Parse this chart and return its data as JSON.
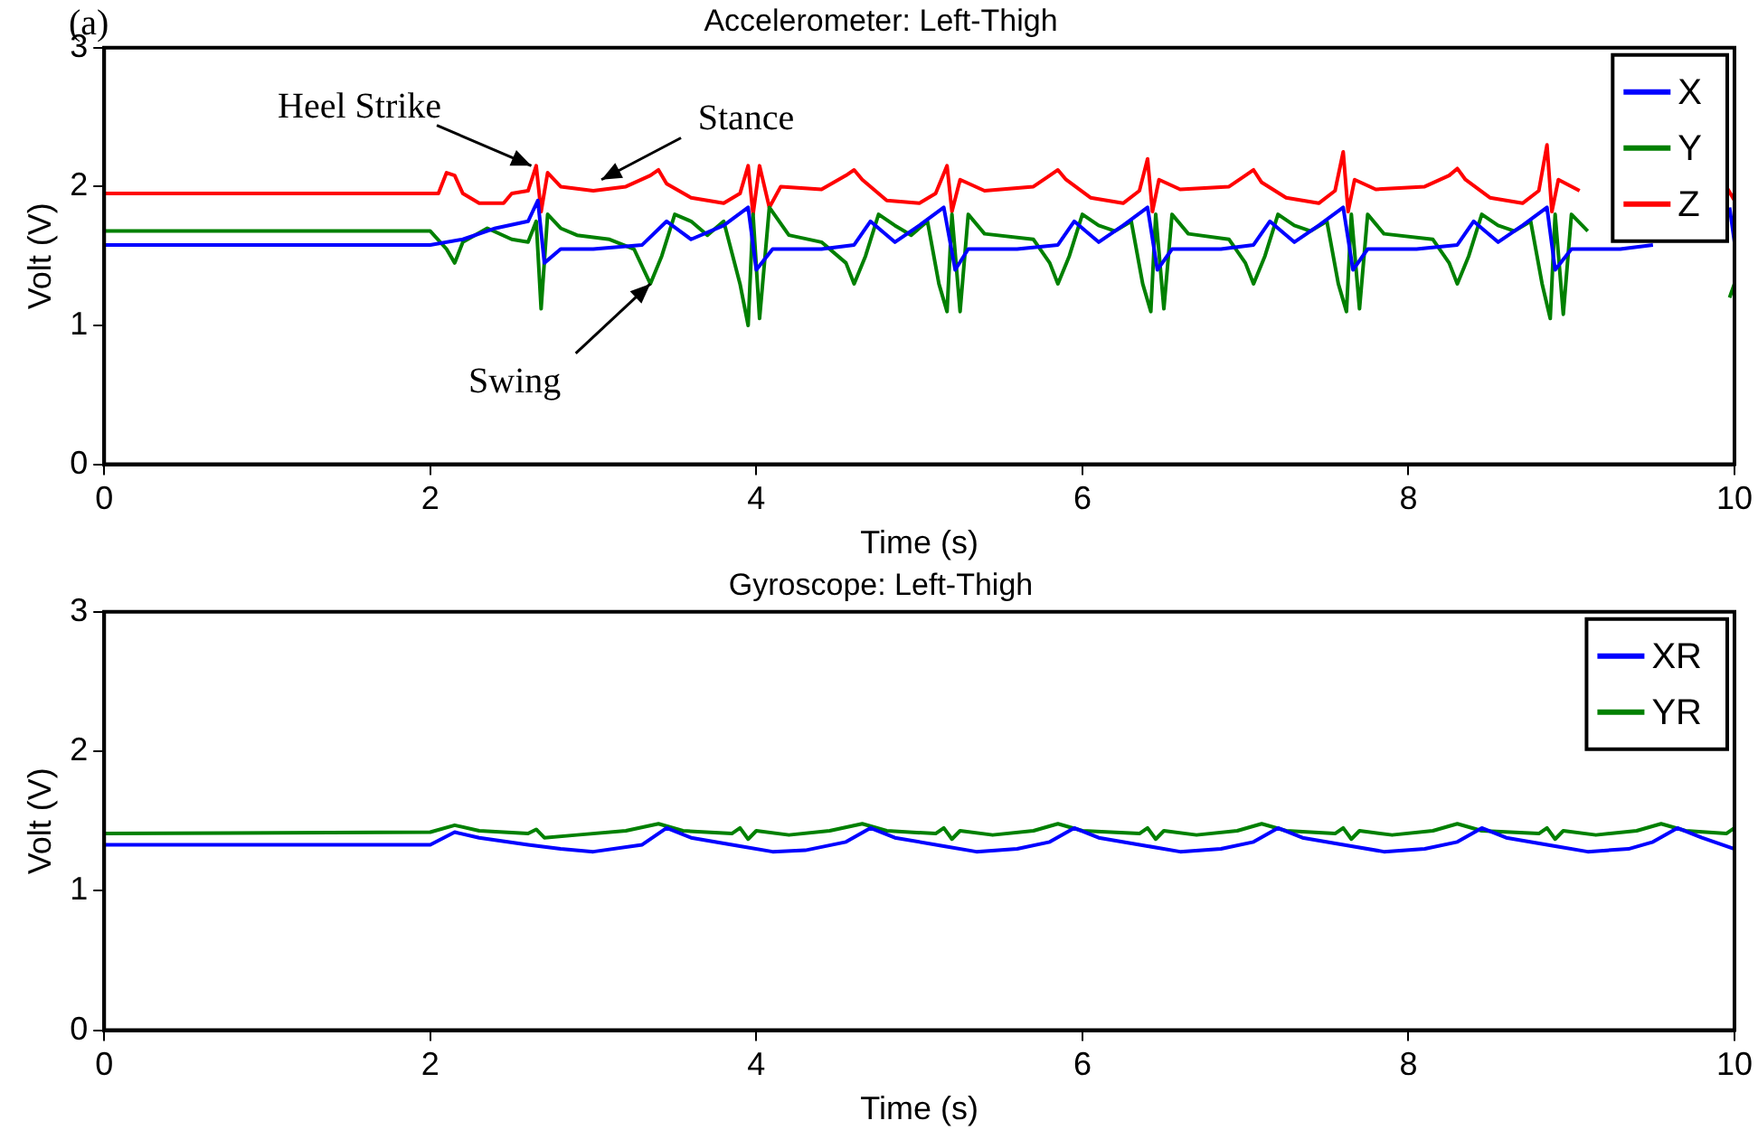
{
  "chart_data": [
    {
      "type": "line",
      "title": "Accelerometer: Left-Thigh",
      "xlabel": "Time (s)",
      "ylabel": "Volt (V)",
      "xlim": [
        0,
        10
      ],
      "xticks": [
        0,
        2,
        4,
        6,
        8,
        10
      ],
      "ylim": [
        0,
        3
      ],
      "yticks": [
        0,
        1,
        2,
        3
      ],
      "grid": false,
      "legend": "top right",
      "marker": "none",
      "line_style": "solid",
      "annotations": [
        "(a)",
        {
          "text": "Heel Strike",
          "x": 2.62,
          "y": 2.15
        },
        {
          "text": "Stance",
          "x": 3.05,
          "y": 2.05
        },
        {
          "text": "Swing",
          "x": 3.35,
          "y": 1.3
        }
      ],
      "series": [
        {
          "name": "X",
          "color": "#0000ff",
          "x": [
            0,
            2.0,
            2.2,
            2.4,
            2.6,
            2.66,
            2.7,
            2.8,
            3.0,
            3.3,
            3.45,
            3.6,
            3.8,
            3.95,
            4.0,
            4.1,
            4.4,
            4.6,
            4.7,
            4.85,
            5.0,
            5.15,
            5.22,
            5.3,
            5.6,
            5.85,
            5.95,
            6.1,
            6.25,
            6.4,
            6.46,
            6.55,
            6.85,
            7.05,
            7.15,
            7.3,
            7.45,
            7.6,
            7.66,
            7.75,
            8.05,
            8.3,
            8.4,
            8.55,
            8.7,
            8.85,
            8.9,
            9.0,
            9.3,
            9.5,
            9.6,
            9.75,
            9.9,
            9.97,
            10
          ],
          "values": [
            1.58,
            1.58,
            1.62,
            1.7,
            1.75,
            1.9,
            1.45,
            1.55,
            1.55,
            1.58,
            1.75,
            1.62,
            1.72,
            1.85,
            1.4,
            1.55,
            1.55,
            1.58,
            1.75,
            1.6,
            1.72,
            1.85,
            1.4,
            1.55,
            1.55,
            1.58,
            1.75,
            1.6,
            1.72,
            1.85,
            1.4,
            1.55,
            1.55,
            1.58,
            1.75,
            1.6,
            1.72,
            1.85,
            1.4,
            1.55,
            1.55,
            1.58,
            1.75,
            1.6,
            1.72,
            1.85,
            1.4,
            1.55,
            1.55,
            1.58,
            null,
            null,
            null,
            1.85,
            1.6
          ]
        },
        {
          "name": "Y",
          "color": "#008000",
          "x": [
            0,
            2.0,
            2.1,
            2.15,
            2.2,
            2.35,
            2.5,
            2.6,
            2.65,
            2.68,
            2.72,
            2.8,
            2.9,
            3.1,
            3.25,
            3.35,
            3.42,
            3.5,
            3.6,
            3.7,
            3.8,
            3.9,
            3.95,
            3.98,
            4.02,
            4.08,
            4.2,
            4.4,
            4.55,
            4.6,
            4.67,
            4.75,
            4.85,
            4.95,
            5.05,
            5.12,
            5.17,
            5.2,
            5.25,
            5.3,
            5.4,
            5.7,
            5.8,
            5.85,
            5.92,
            6.0,
            6.1,
            6.2,
            6.3,
            6.37,
            6.42,
            6.45,
            6.5,
            6.55,
            6.65,
            6.9,
            7.0,
            7.05,
            7.12,
            7.2,
            7.3,
            7.4,
            7.5,
            7.57,
            7.62,
            7.65,
            7.7,
            7.75,
            7.85,
            8.15,
            8.25,
            8.3,
            8.37,
            8.45,
            8.55,
            8.65,
            8.75,
            8.82,
            8.87,
            8.9,
            8.95,
            9.0,
            9.1,
            9.4,
            9.5,
            9.6,
            9.75,
            9.9,
            9.97,
            10
          ],
          "values": [
            1.68,
            1.68,
            1.55,
            1.45,
            1.6,
            1.7,
            1.62,
            1.6,
            1.75,
            1.12,
            1.8,
            1.7,
            1.65,
            1.62,
            1.55,
            1.3,
            1.5,
            1.8,
            1.75,
            1.65,
            1.75,
            1.3,
            1.0,
            1.8,
            1.05,
            1.85,
            1.65,
            1.6,
            1.45,
            1.3,
            1.5,
            1.8,
            1.72,
            1.65,
            1.75,
            1.3,
            1.1,
            1.8,
            1.1,
            1.8,
            1.66,
            1.62,
            1.45,
            1.3,
            1.5,
            1.8,
            1.72,
            1.68,
            1.75,
            1.3,
            1.1,
            1.8,
            1.12,
            1.8,
            1.66,
            1.62,
            1.45,
            1.3,
            1.5,
            1.8,
            1.72,
            1.68,
            1.75,
            1.3,
            1.1,
            1.8,
            1.12,
            1.8,
            1.66,
            1.62,
            1.45,
            1.3,
            1.5,
            1.8,
            1.72,
            1.68,
            1.75,
            1.3,
            1.05,
            1.8,
            1.08,
            1.8,
            1.68,
            null,
            null,
            null,
            null,
            null,
            1.2,
            1.3
          ]
        },
        {
          "name": "Z",
          "color": "#ff0000",
          "x": [
            0,
            2.05,
            2.1,
            2.15,
            2.2,
            2.3,
            2.45,
            2.5,
            2.6,
            2.65,
            2.68,
            2.72,
            2.8,
            3.0,
            3.2,
            3.35,
            3.4,
            3.45,
            3.6,
            3.8,
            3.9,
            3.95,
            3.98,
            4.02,
            4.08,
            4.15,
            4.4,
            4.55,
            4.6,
            4.65,
            4.8,
            5.0,
            5.1,
            5.17,
            5.2,
            5.25,
            5.4,
            5.7,
            5.8,
            5.85,
            5.9,
            6.05,
            6.25,
            6.35,
            6.4,
            6.43,
            6.47,
            6.6,
            6.9,
            7.0,
            7.05,
            7.1,
            7.25,
            7.45,
            7.55,
            7.6,
            7.63,
            7.67,
            7.8,
            8.1,
            8.25,
            8.3,
            8.35,
            8.5,
            8.7,
            8.8,
            8.85,
            8.88,
            8.92,
            9.05,
            9.35,
            9.45,
            9.5,
            9.55,
            9.7,
            9.9,
            9.95,
            10
          ],
          "values": [
            1.95,
            1.95,
            2.1,
            2.08,
            1.95,
            1.88,
            1.88,
            1.95,
            1.97,
            2.15,
            1.82,
            2.1,
            2.0,
            1.97,
            2.0,
            2.08,
            2.12,
            2.02,
            1.92,
            1.88,
            1.95,
            2.15,
            1.8,
            2.15,
            1.85,
            2.0,
            1.98,
            2.08,
            2.12,
            2.05,
            1.9,
            1.88,
            1.95,
            2.15,
            1.82,
            2.05,
            1.97,
            2.0,
            2.08,
            2.12,
            2.05,
            1.92,
            1.88,
            1.97,
            2.2,
            1.82,
            2.05,
            1.98,
            2.0,
            2.08,
            2.12,
            2.03,
            1.92,
            1.88,
            1.97,
            2.25,
            1.82,
            2.05,
            1.98,
            2.0,
            2.08,
            2.13,
            2.05,
            1.92,
            1.88,
            1.97,
            2.3,
            1.82,
            2.05,
            1.97,
            null,
            null,
            null,
            null,
            null,
            null,
            2.0,
            1.9
          ]
        }
      ]
    },
    {
      "type": "line",
      "title": "Gyroscope: Left-Thigh",
      "xlabel": "Time (s)",
      "ylabel": "Volt (V)",
      "xlim": [
        0,
        10
      ],
      "xticks": [
        0,
        2,
        4,
        6,
        8,
        10
      ],
      "ylim": [
        0,
        3
      ],
      "yticks": [
        0,
        1,
        2,
        3
      ],
      "grid": false,
      "legend": "top right",
      "marker": "none",
      "line_style": "solid",
      "series": [
        {
          "name": "XR",
          "color": "#0000ff",
          "x": [
            0,
            2.0,
            2.15,
            2.3,
            2.6,
            2.8,
            3.0,
            3.3,
            3.45,
            3.6,
            3.9,
            4.1,
            4.3,
            4.55,
            4.7,
            4.85,
            5.15,
            5.35,
            5.6,
            5.8,
            5.95,
            6.1,
            6.4,
            6.6,
            6.85,
            7.05,
            7.2,
            7.35,
            7.65,
            7.85,
            8.1,
            8.3,
            8.45,
            8.6,
            8.9,
            9.1,
            9.35,
            9.5,
            9.65,
            9.8,
            10
          ],
          "values": [
            1.33,
            1.33,
            1.42,
            1.38,
            1.33,
            1.3,
            1.28,
            1.33,
            1.45,
            1.38,
            1.32,
            1.28,
            1.29,
            1.35,
            1.45,
            1.38,
            1.32,
            1.28,
            1.3,
            1.35,
            1.45,
            1.38,
            1.32,
            1.28,
            1.3,
            1.35,
            1.45,
            1.38,
            1.32,
            1.28,
            1.3,
            1.35,
            1.45,
            1.38,
            1.32,
            1.28,
            1.3,
            1.35,
            1.45,
            1.38,
            1.3
          ]
        },
        {
          "name": "YR",
          "color": "#008000",
          "x": [
            0,
            2.0,
            2.15,
            2.3,
            2.6,
            2.65,
            2.7,
            2.9,
            3.2,
            3.4,
            3.55,
            3.85,
            3.9,
            3.95,
            4.0,
            4.2,
            4.45,
            4.65,
            4.8,
            5.1,
            5.15,
            5.2,
            5.25,
            5.45,
            5.7,
            5.85,
            6.0,
            6.35,
            6.4,
            6.45,
            6.5,
            6.7,
            6.95,
            7.1,
            7.25,
            7.55,
            7.6,
            7.65,
            7.7,
            7.9,
            8.15,
            8.3,
            8.45,
            8.8,
            8.85,
            8.9,
            8.95,
            9.15,
            9.4,
            9.55,
            9.7,
            9.95,
            10
          ],
          "values": [
            1.41,
            1.42,
            1.47,
            1.43,
            1.41,
            1.44,
            1.38,
            1.4,
            1.43,
            1.48,
            1.43,
            1.41,
            1.45,
            1.37,
            1.43,
            1.4,
            1.43,
            1.48,
            1.43,
            1.41,
            1.45,
            1.37,
            1.43,
            1.4,
            1.43,
            1.48,
            1.43,
            1.41,
            1.45,
            1.37,
            1.43,
            1.4,
            1.43,
            1.48,
            1.43,
            1.41,
            1.45,
            1.37,
            1.43,
            1.4,
            1.43,
            1.48,
            1.43,
            1.41,
            1.45,
            1.37,
            1.43,
            1.4,
            1.43,
            1.48,
            1.43,
            1.41,
            1.45
          ]
        }
      ]
    }
  ]
}
